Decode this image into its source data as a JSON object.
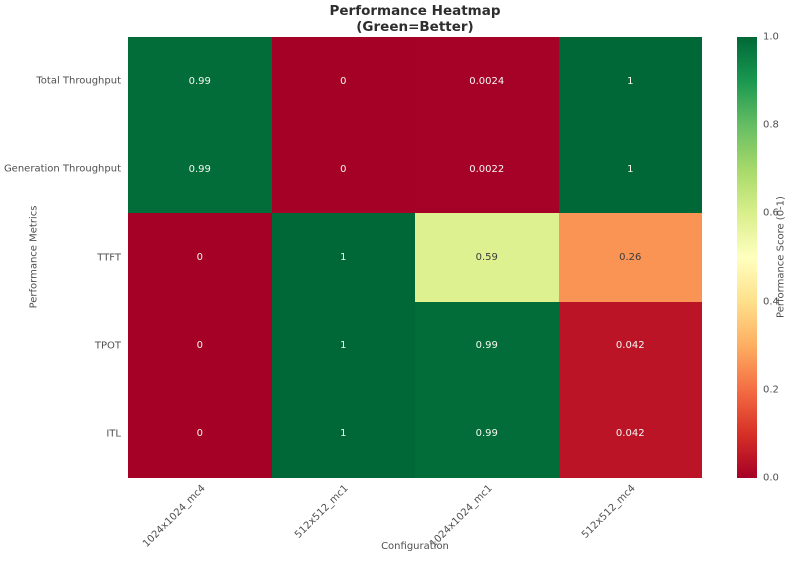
{
  "title": {
    "line1": "Performance Heatmap",
    "line2": "(Green=Better)"
  },
  "chart_data": {
    "type": "heatmap",
    "title": "Performance Heatmap (Green=Better)",
    "xlabel": "Configuration",
    "ylabel": "Performance Metrics",
    "columns": [
      "1024x1024_mc4",
      "512x512_mc1",
      "1024x1024_mc1",
      "512x512_mc4"
    ],
    "rows": [
      "Total Throughput",
      "Generation Throughput",
      "TTFT",
      "TPOT",
      "ITL"
    ],
    "values": [
      [
        0.99,
        0,
        0.0024,
        1
      ],
      [
        0.99,
        0,
        0.0022,
        1
      ],
      [
        0,
        1,
        0.59,
        0.26
      ],
      [
        0,
        1,
        0.99,
        0.042
      ],
      [
        0,
        1,
        0.99,
        0.042
      ]
    ],
    "cell_labels": [
      [
        "0.99",
        "0",
        "0.0024",
        "1"
      ],
      [
        "0.99",
        "0",
        "0.0022",
        "1"
      ],
      [
        "0",
        "1",
        "0.59",
        "0.26"
      ],
      [
        "0",
        "1",
        "0.99",
        "0.042"
      ],
      [
        "0",
        "1",
        "0.99",
        "0.042"
      ]
    ],
    "vmin": 0,
    "vmax": 1,
    "grid": false,
    "colormap": {
      "name": "RdYlGn",
      "stops": [
        "#a50026",
        "#d73027",
        "#f46d43",
        "#fdae61",
        "#fee08b",
        "#ffffbf",
        "#d9ef8b",
        "#a6d96a",
        "#66bd63",
        "#1a9850",
        "#006837"
      ]
    },
    "annotation_colors": {
      "on_dark": "#f7f7f2",
      "on_light": "#3c3c3c"
    },
    "colorbar": {
      "label": "Performance Score (0-1)",
      "ticks": [
        "0.0",
        "0.2",
        "0.4",
        "0.6",
        "0.8",
        "1.0"
      ],
      "min": 0,
      "max": 1,
      "position": "right"
    }
  }
}
